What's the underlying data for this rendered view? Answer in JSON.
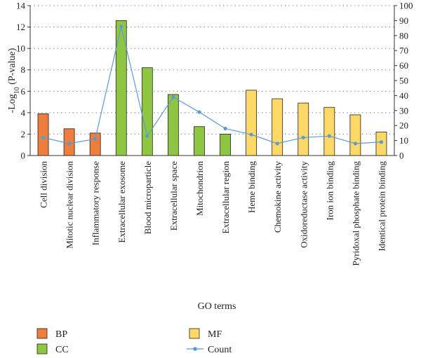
{
  "chart_data": {
    "type": "bar",
    "xlabel": "GO terms",
    "ylabel_main": "-Log",
    "ylabel_sub": "10",
    "ylabel_rest": " (P-value)",
    "ylim": [
      0,
      14
    ],
    "y2lim": [
      0,
      100
    ],
    "yticks": [
      "0",
      "2",
      "4",
      "6",
      "8",
      "10",
      "12",
      "14"
    ],
    "y2ticks": [
      "0",
      "10",
      "20",
      "30",
      "40",
      "50",
      "60",
      "70",
      "80",
      "90",
      "100"
    ],
    "grid": "dotted-horizontal",
    "categories": [
      "Cell division",
      "Mitotic nuclear division",
      "Inflammatory response",
      "Extracellular exosome",
      "Blood microparticle",
      "Extracellular space",
      "Mitochondrion",
      "Extracellular region",
      "Heme binding",
      "Chemokine activity",
      "Oxidoreductase activity",
      "Iron ion binding",
      "Pyridoxal phosphate binding",
      "Identical protein binding"
    ],
    "groups": [
      "BP",
      "BP",
      "BP",
      "CC",
      "CC",
      "CC",
      "CC",
      "CC",
      "MF",
      "MF",
      "MF",
      "MF",
      "MF",
      "MF"
    ],
    "values": [
      3.9,
      2.5,
      2.1,
      12.6,
      8.2,
      5.7,
      2.7,
      2.0,
      6.1,
      5.3,
      4.9,
      4.5,
      3.8,
      2.2
    ],
    "count": [
      12,
      8,
      11,
      86,
      13,
      39,
      29,
      18,
      14,
      8,
      12,
      13,
      8,
      9
    ],
    "colors": {
      "BP": "#ef7d3c",
      "CC": "#8ec641",
      "MF": "#ffd966",
      "Count": "#5b9bd5"
    },
    "legend": [
      {
        "key": "BP",
        "label": "BP",
        "kind": "box"
      },
      {
        "key": "CC",
        "label": "CC",
        "kind": "box"
      },
      {
        "key": "MF",
        "label": "MF",
        "kind": "box"
      },
      {
        "key": "Count",
        "label": "Count",
        "kind": "line"
      }
    ]
  }
}
